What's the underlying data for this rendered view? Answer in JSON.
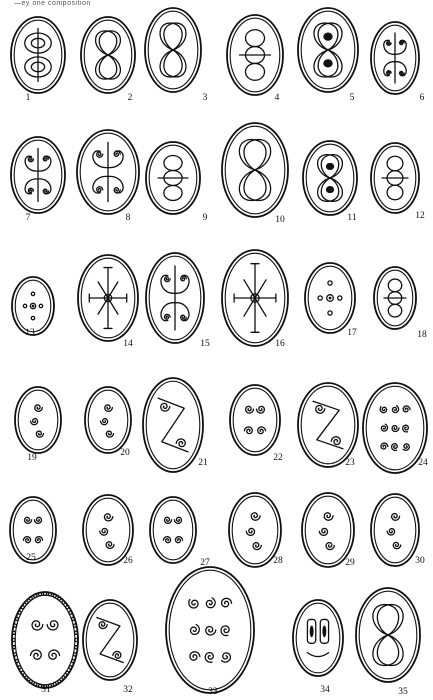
{
  "header": {
    "text": "—ey one composition"
  },
  "seals": [
    {
      "num": "1",
      "motif": "ovals"
    },
    {
      "num": "2",
      "motif": "loops"
    },
    {
      "num": "3",
      "motif": "knot"
    },
    {
      "num": "4",
      "motif": "chain"
    },
    {
      "num": "5",
      "motif": "knot-dark"
    },
    {
      "num": "6",
      "motif": "scroll-pair"
    },
    {
      "num": "7",
      "motif": "scroll-pair"
    },
    {
      "num": "8",
      "motif": "scroll-pair"
    },
    {
      "num": "9",
      "motif": "chain"
    },
    {
      "num": "10",
      "motif": "knot"
    },
    {
      "num": "11",
      "motif": "knot-dark"
    },
    {
      "num": "12",
      "motif": "chain"
    },
    {
      "num": "13",
      "motif": "rosette"
    },
    {
      "num": "14",
      "motif": "rosette-cross"
    },
    {
      "num": "15",
      "motif": "scroll-pair"
    },
    {
      "num": "16",
      "motif": "rosette-cross"
    },
    {
      "num": "17",
      "motif": "rosette"
    },
    {
      "num": "18",
      "motif": "chain"
    },
    {
      "num": "19",
      "motif": "spiral3"
    },
    {
      "num": "20",
      "motif": "spiral3"
    },
    {
      "num": "21",
      "motif": "zigzag"
    },
    {
      "num": "22",
      "motif": "spiral4"
    },
    {
      "num": "23",
      "motif": "zigzag"
    },
    {
      "num": "24",
      "motif": "grid-spirals"
    },
    {
      "num": "25",
      "motif": "spiral4"
    },
    {
      "num": "26",
      "motif": "spiral3"
    },
    {
      "num": "27",
      "motif": "spiral4"
    },
    {
      "num": "28",
      "motif": "spiral3"
    },
    {
      "num": "29",
      "motif": "spiral3"
    },
    {
      "num": "30",
      "motif": "spiral3"
    },
    {
      "num": "31",
      "motif": "spiral4"
    },
    {
      "num": "32",
      "motif": "zigzag"
    },
    {
      "num": "33",
      "motif": "grid-spirals"
    },
    {
      "num": "34",
      "motif": "cartouche"
    },
    {
      "num": "35",
      "motif": "knot"
    }
  ]
}
